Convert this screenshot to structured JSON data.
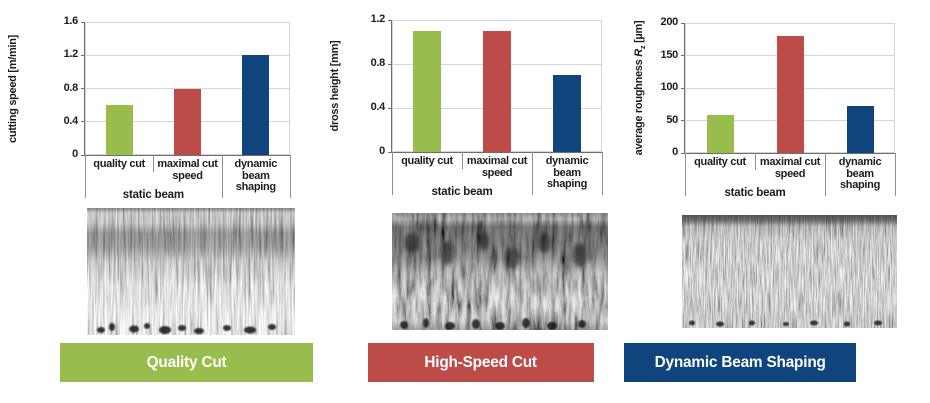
{
  "figure": {
    "background": "#ffffff",
    "text_color": "#1c1c1c"
  },
  "colors": {
    "quality_green": "#98bd4d",
    "highspeed_red": "#bd4b47",
    "dynamic_blue": "#0f447c",
    "gridline": "#d6d6d6",
    "axis": "#6e6e6e",
    "banner_text": "#ffffff"
  },
  "chart_data": [
    {
      "type": "bar",
      "title": "",
      "ylabel": "cutting speed [m/min]",
      "ylabel_parts": [
        {
          "text": "cutting speed [m/min]"
        }
      ],
      "categories": [
        "quality cut",
        "maximal cut speed",
        "dynamic beam shaping"
      ],
      "category_lines": [
        [
          "quality cut"
        ],
        [
          "maximal cut",
          "speed"
        ],
        [
          "dynamic",
          "beam",
          "shaping"
        ]
      ],
      "values": [
        0.6,
        0.8,
        1.2
      ],
      "bar_colors": [
        "#98bd4d",
        "#bd4b47",
        "#0f447c"
      ],
      "ylim": [
        0,
        1.6
      ],
      "yticks": [
        "0",
        "0.4",
        "0.8",
        "1.2",
        "1.6"
      ],
      "grid": true,
      "legend": "none",
      "group_label": "static beam",
      "group_span": [
        0,
        1
      ]
    },
    {
      "type": "bar",
      "title": "",
      "ylabel": "dross height [mm]",
      "ylabel_parts": [
        {
          "text": "dross height [mm]"
        }
      ],
      "categories": [
        "quality cut",
        "maximal cut speed",
        "dynamic beam shaping"
      ],
      "category_lines": [
        [
          "quality cut"
        ],
        [
          "maximal cut",
          "speed"
        ],
        [
          "dynamic",
          "beam",
          "shaping"
        ]
      ],
      "values": [
        1.1,
        1.1,
        0.7
      ],
      "bar_colors": [
        "#98bd4d",
        "#bd4b47",
        "#0f447c"
      ],
      "ylim": [
        0,
        1.2
      ],
      "yticks": [
        "0",
        "0.4",
        "0.8",
        "1.2"
      ],
      "grid": true,
      "legend": "none",
      "group_label": "static beam",
      "group_span": [
        0,
        1
      ]
    },
    {
      "type": "bar",
      "title": "",
      "ylabel": "average roughness Rz [µm]",
      "ylabel_parts": [
        {
          "text": "average roughness "
        },
        {
          "text": "R",
          "style": "italic"
        },
        {
          "text": "z",
          "style": "sub"
        },
        {
          "text": " [µm]"
        }
      ],
      "categories": [
        "quality cut",
        "maximal cut speed",
        "dynamic beam shaping"
      ],
      "category_lines": [
        [
          "quality cut"
        ],
        [
          "maximal cut",
          "speed"
        ],
        [
          "dynamic",
          "beam",
          "shaping"
        ]
      ],
      "values": [
        58,
        180,
        73
      ],
      "bar_colors": [
        "#98bd4d",
        "#bd4b47",
        "#0f447c"
      ],
      "ylim": [
        0,
        200
      ],
      "yticks": [
        "0",
        "50",
        "100",
        "150",
        "200"
      ],
      "grid": true,
      "legend": "none",
      "group_label": "static beam",
      "group_span": [
        0,
        1
      ]
    }
  ],
  "micrographs": [
    {
      "label": "cut edge micrograph - quality cut"
    },
    {
      "label": "cut edge micrograph - high-speed cut"
    },
    {
      "label": "cut edge micrograph - dynamic beam shaping"
    }
  ],
  "banners": [
    {
      "label": "Quality Cut",
      "color": "#98bd4d"
    },
    {
      "label": "High-Speed Cut",
      "color": "#bd4b47"
    },
    {
      "label": "Dynamic Beam Shaping",
      "color": "#0f447c"
    }
  ]
}
